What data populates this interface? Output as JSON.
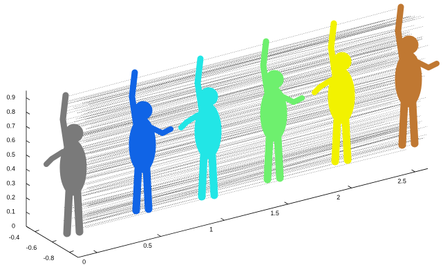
{
  "chart_data": {
    "type": "scatter3d",
    "xlim": [
      -0.15,
      2.6
    ],
    "xticks": [
      0,
      0.5,
      1,
      1.5,
      2,
      2.5
    ],
    "ylim": [
      -0.9,
      -0.3
    ],
    "yticks": [
      -0.4,
      -0.6,
      -0.8
    ],
    "zlim": [
      0,
      0.95
    ],
    "zticks": [
      0,
      0.1,
      0.2,
      0.3,
      0.4,
      0.5,
      0.6,
      0.7,
      0.8,
      0.9
    ]
  }
}
